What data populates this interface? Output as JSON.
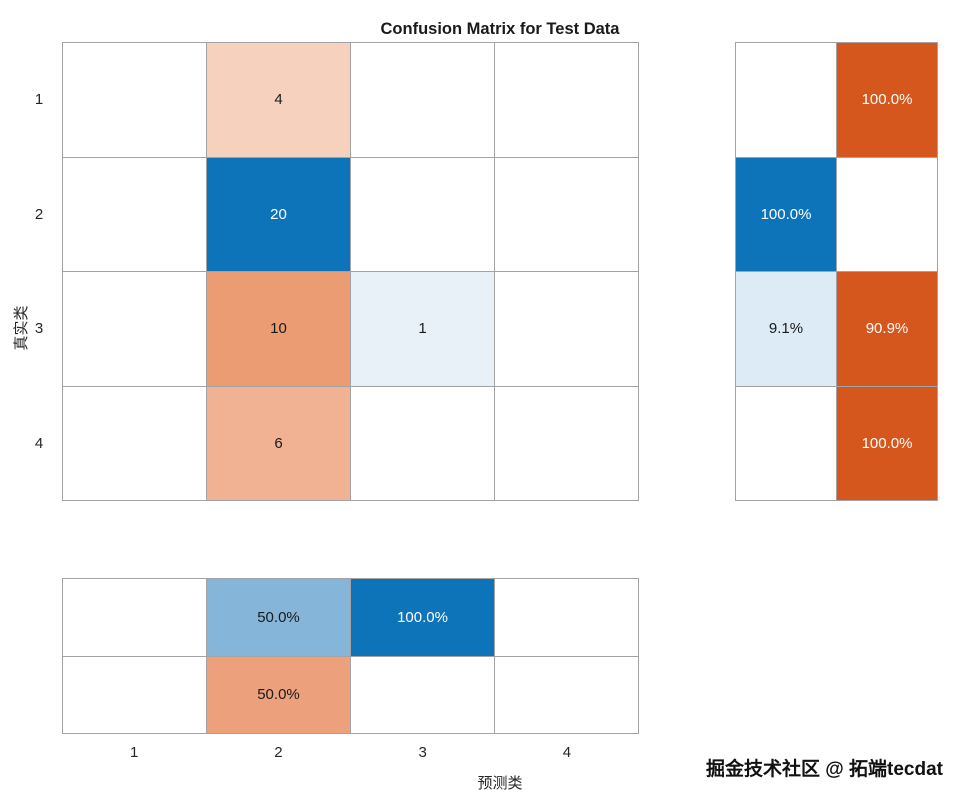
{
  "page": {
    "watermark": "掘金技术社区 @ 拓端tecdat"
  },
  "chart_data": {
    "type": "heatmap",
    "title": "Confusion Matrix for Test Data",
    "xlabel": "预测类",
    "ylabel": "真实类",
    "x_tick_labels": [
      "1",
      "2",
      "3",
      "4"
    ],
    "y_tick_labels": [
      "1",
      "2",
      "3",
      "4"
    ],
    "colors": {
      "diagonal_full": "#0e74ba",
      "offdiagonal_full": "#d6571e",
      "grid_line": "#a3a3a3"
    },
    "matrix": {
      "cells": [
        [
          {
            "value": "",
            "bg": "#ffffff",
            "fg": "#1a1a1a"
          },
          {
            "value": "4",
            "bg": "#f6d1be",
            "fg": "#1a1a1a"
          },
          {
            "value": "",
            "bg": "#ffffff",
            "fg": "#1a1a1a"
          },
          {
            "value": "",
            "bg": "#ffffff",
            "fg": "#1a1a1a"
          }
        ],
        [
          {
            "value": "",
            "bg": "#ffffff",
            "fg": "#1a1a1a"
          },
          {
            "value": "20",
            "bg": "#0e74ba",
            "fg": "#ffffff"
          },
          {
            "value": "",
            "bg": "#ffffff",
            "fg": "#1a1a1a"
          },
          {
            "value": "",
            "bg": "#ffffff",
            "fg": "#1a1a1a"
          }
        ],
        [
          {
            "value": "",
            "bg": "#ffffff",
            "fg": "#1a1a1a"
          },
          {
            "value": "10",
            "bg": "#ec9c72",
            "fg": "#1a1a1a"
          },
          {
            "value": "1",
            "bg": "#e8f0f8",
            "fg": "#1a1a1a"
          },
          {
            "value": "",
            "bg": "#ffffff",
            "fg": "#1a1a1a"
          }
        ],
        [
          {
            "value": "",
            "bg": "#ffffff",
            "fg": "#1a1a1a"
          },
          {
            "value": "6",
            "bg": "#f1b193",
            "fg": "#1a1a1a"
          },
          {
            "value": "",
            "bg": "#ffffff",
            "fg": "#1a1a1a"
          },
          {
            "value": "",
            "bg": "#ffffff",
            "fg": "#1a1a1a"
          }
        ]
      ]
    },
    "row_summary": {
      "cells": [
        [
          {
            "value": "",
            "bg": "#ffffff",
            "fg": "#1a1a1a"
          },
          {
            "value": "100.0%",
            "bg": "#d6571e",
            "fg": "#ffffff"
          }
        ],
        [
          {
            "value": "100.0%",
            "bg": "#0e74ba",
            "fg": "#ffffff"
          },
          {
            "value": "",
            "bg": "#ffffff",
            "fg": "#1a1a1a"
          }
        ],
        [
          {
            "value": "9.1%",
            "bg": "#dcebf6",
            "fg": "#1a1a1a"
          },
          {
            "value": "90.9%",
            "bg": "#d6571e",
            "fg": "#ffffff"
          }
        ],
        [
          {
            "value": "",
            "bg": "#ffffff",
            "fg": "#1a1a1a"
          },
          {
            "value": "100.0%",
            "bg": "#d6571e",
            "fg": "#ffffff"
          }
        ]
      ]
    },
    "column_summary": {
      "cells": [
        [
          {
            "value": "",
            "bg": "#ffffff",
            "fg": "#1a1a1a"
          },
          {
            "value": "50.0%",
            "bg": "#85b6da",
            "fg": "#1a1a1a"
          },
          {
            "value": "100.0%",
            "bg": "#0e74ba",
            "fg": "#ffffff"
          },
          {
            "value": "",
            "bg": "#ffffff",
            "fg": "#1a1a1a"
          }
        ],
        [
          {
            "value": "",
            "bg": "#ffffff",
            "fg": "#1a1a1a"
          },
          {
            "value": "50.0%",
            "bg": "#eca07b",
            "fg": "#1a1a1a"
          },
          {
            "value": "",
            "bg": "#ffffff",
            "fg": "#1a1a1a"
          },
          {
            "value": "",
            "bg": "#ffffff",
            "fg": "#1a1a1a"
          }
        ]
      ]
    }
  }
}
